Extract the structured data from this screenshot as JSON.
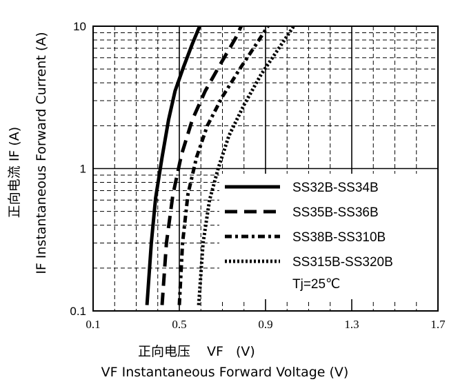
{
  "chart_data": {
    "type": "line",
    "xscale": "linear",
    "yscale": "log",
    "xlim": [
      0.1,
      1.7
    ],
    "ylim": [
      0.1,
      10
    ],
    "xticks": [
      "0.1",
      "0.5",
      "0.9",
      "1.3",
      "1.7"
    ],
    "yticks": [
      "0.1",
      "1",
      "10"
    ],
    "xlabel_cn": "正向电压",
    "xlabel_sym": "VF",
    "xlabel_unit": "(V)",
    "xlabel_en": "VF  Instantaneous Forward Voltage (V)",
    "ylabel_cn": "正向电流  IF  (A)",
    "ylabel_en": "IF Instantaneous Forward Current (A)",
    "annotation": "Tj=25℃",
    "grid": true,
    "legend_position": "bottom-right",
    "series": [
      {
        "name": "SS32B-SS34B",
        "style": "solid",
        "x": [
          0.35,
          0.37,
          0.39,
          0.42,
          0.45,
          0.48,
          0.52,
          0.56,
          0.6
        ],
        "y": [
          0.11,
          0.3,
          0.62,
          1.2,
          2.2,
          3.5,
          5.2,
          7.5,
          10.5
        ]
      },
      {
        "name": "SS35B-SS36B",
        "style": "dash",
        "x": [
          0.42,
          0.44,
          0.47,
          0.51,
          0.56,
          0.62,
          0.69,
          0.76,
          0.8
        ],
        "y": [
          0.11,
          0.3,
          0.65,
          1.25,
          2.2,
          3.5,
          5.4,
          8.2,
          11.0
        ]
      },
      {
        "name": "SS38B-SS310B",
        "style": "dash-dot",
        "x": [
          0.5,
          0.515,
          0.54,
          0.58,
          0.63,
          0.7,
          0.78,
          0.86,
          0.92
        ],
        "y": [
          0.11,
          0.3,
          0.66,
          1.2,
          2.0,
          3.2,
          5.0,
          7.6,
          10.5
        ]
      },
      {
        "name": "SS315B-SS320B",
        "style": "dot",
        "x": [
          0.59,
          0.61,
          0.64,
          0.68,
          0.73,
          0.8,
          0.88,
          0.97,
          1.04
        ],
        "y": [
          0.11,
          0.3,
          0.6,
          1.0,
          1.7,
          2.8,
          4.6,
          7.3,
          10.5
        ]
      }
    ]
  }
}
